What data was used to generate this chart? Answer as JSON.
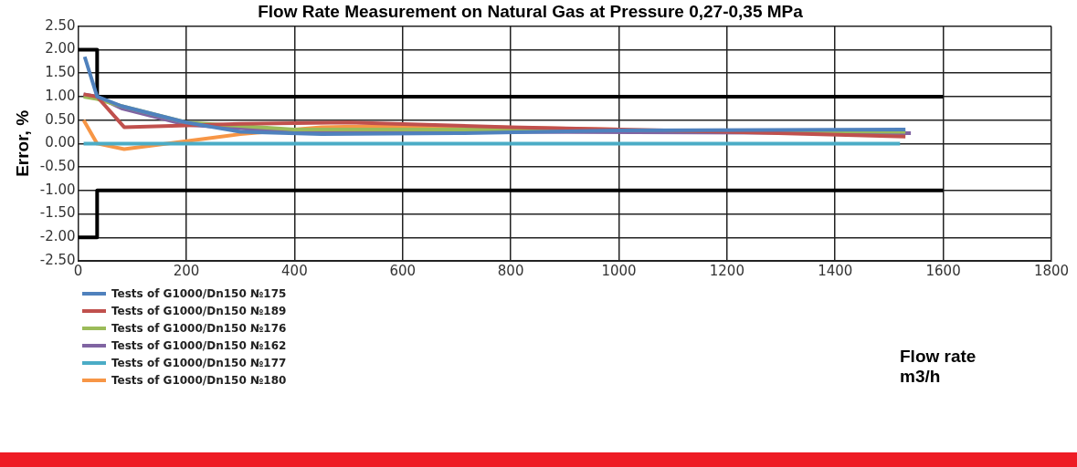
{
  "chart_data": {
    "type": "line",
    "title": "Flow Rate Measurement on Natural Gas at Pressure 0,27-0,35 MPa",
    "xlabel": "Flow rate m3/h",
    "ylabel": "Error, %",
    "xlim": [
      0,
      1800
    ],
    "xticks": [
      0,
      200,
      400,
      600,
      800,
      1000,
      1200,
      1400,
      1600,
      1800
    ],
    "ylim": [
      -2.5,
      2.5
    ],
    "yticks": [
      {
        "value": 2.5,
        "label": "2.50"
      },
      {
        "value": 2,
        "label": "2.00"
      },
      {
        "value": 1.5,
        "label": "1.50"
      },
      {
        "value": 1,
        "label": "1.00"
      },
      {
        "value": 0.5,
        "label": "0.50"
      },
      {
        "value": 0,
        "label": "0.00"
      },
      {
        "value": -0.5,
        "label": "-0.50"
      },
      {
        "value": -1,
        "label": "-1.00"
      },
      {
        "value": -1.5,
        "label": "-1.50"
      },
      {
        "value": -2,
        "label": "-2.00"
      },
      {
        "value": -2.5,
        "label": "-2.50"
      }
    ],
    "grid": true,
    "legend": "bottom left",
    "marker": "none",
    "line_style": "solid",
    "series": [
      {
        "name": "Tests of G1000/Dn150 №175",
        "color": "#4f81bd",
        "x": [
          12,
          35,
          80,
          200,
          300,
          450,
          700,
          1000,
          1530
        ],
        "values": [
          1.85,
          1.0,
          0.8,
          0.45,
          0.25,
          0.2,
          0.22,
          0.28,
          0.3
        ]
      },
      {
        "name": "Tests of G1000/Dn150 №189",
        "color": "#c0504d",
        "x": [
          10,
          35,
          85,
          300,
          500,
          800,
          1200,
          1530
        ],
        "values": [
          1.05,
          1.0,
          0.35,
          0.42,
          0.45,
          0.35,
          0.25,
          0.15
        ]
      },
      {
        "name": "Tests of G1000/Dn150 №176",
        "color": "#9bbb59",
        "x": [
          10,
          35,
          80,
          200,
          400,
          800,
          1530
        ],
        "values": [
          1.0,
          0.95,
          0.8,
          0.45,
          0.3,
          0.3,
          0.25
        ]
      },
      {
        "name": "Tests of G1000/Dn150 №162",
        "color": "#8064a2",
        "x": [
          10,
          35,
          80,
          200,
          400,
          800,
          1540
        ],
        "values": [
          1.05,
          1.0,
          0.75,
          0.4,
          0.25,
          0.25,
          0.22
        ]
      },
      {
        "name": "Tests of G1000/Dn150 №177",
        "color": "#4bacc6",
        "x": [
          10,
          1520
        ],
        "values": [
          0,
          0
        ]
      },
      {
        "name": "Tests of G1000/Dn150 №180",
        "color": "#f79646",
        "x": [
          10,
          35,
          85,
          200,
          300,
          450,
          600,
          1000
        ],
        "values": [
          0.5,
          0.0,
          -0.12,
          0.05,
          0.2,
          0.35,
          0.38,
          0.3
        ]
      },
      {
        "color": "#000000",
        "x": [
          0,
          35,
          35,
          1600
        ],
        "values": [
          2,
          2,
          1,
          1
        ]
      },
      {
        "color": "#000000",
        "x": [
          0,
          35,
          35,
          1600
        ],
        "values": [
          -2,
          -2,
          -1,
          -1
        ]
      }
    ]
  }
}
